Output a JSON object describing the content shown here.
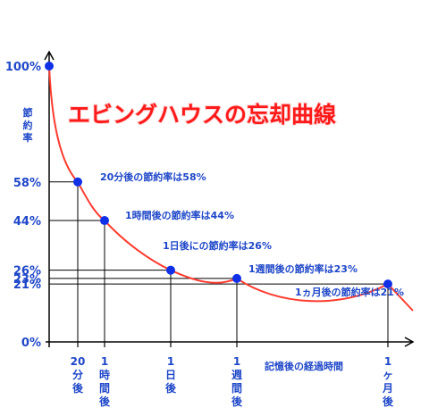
{
  "chart_data": {
    "type": "line",
    "title": "エビングハウスの忘却曲線",
    "ylabel": "節約率",
    "xlabel": "記憶後の経過時間",
    "y_ticks": [
      {
        "value": 100,
        "label": "100%"
      },
      {
        "value": 58,
        "label": "58%"
      },
      {
        "value": 44,
        "label": "44%"
      },
      {
        "value": 26,
        "label": "26%"
      },
      {
        "value": 23,
        "label": "23%"
      },
      {
        "value": 21,
        "label": "21%"
      },
      {
        "value": 0,
        "label": "0%"
      }
    ],
    "points": [
      {
        "x_label": "0",
        "value": 100
      },
      {
        "x_label": "20分後",
        "value": 58,
        "annotation": "20分後の節約率は58%"
      },
      {
        "x_label": "1時間後",
        "value": 44,
        "annotation": "1時間後の節約率は44%"
      },
      {
        "x_label": "1日後",
        "value": 26,
        "annotation": "1日後にの節約率は26%"
      },
      {
        "x_label": "1週間後",
        "value": 23,
        "annotation": "1週間後の節約率は23%"
      },
      {
        "x_label": "1ヵ月後",
        "value": 21,
        "annotation": "1ヵ月後の節約率は21%"
      }
    ],
    "x_tick_lines": [
      [
        "20",
        "分",
        "後"
      ],
      [
        "1",
        "時",
        "間",
        "後"
      ],
      [
        "1",
        "日",
        "後"
      ],
      [
        "1",
        "週",
        "間",
        "後"
      ],
      [
        "1",
        "ヶ",
        "月",
        "後"
      ]
    ],
    "ylabel_chars": [
      "節",
      "約",
      "率"
    ],
    "grid": false,
    "colors": {
      "curve": "#ff3b2f",
      "point": "#1030e8",
      "label": "#1f47c8",
      "title": "#ff1a1a",
      "axis": "#000000"
    }
  }
}
